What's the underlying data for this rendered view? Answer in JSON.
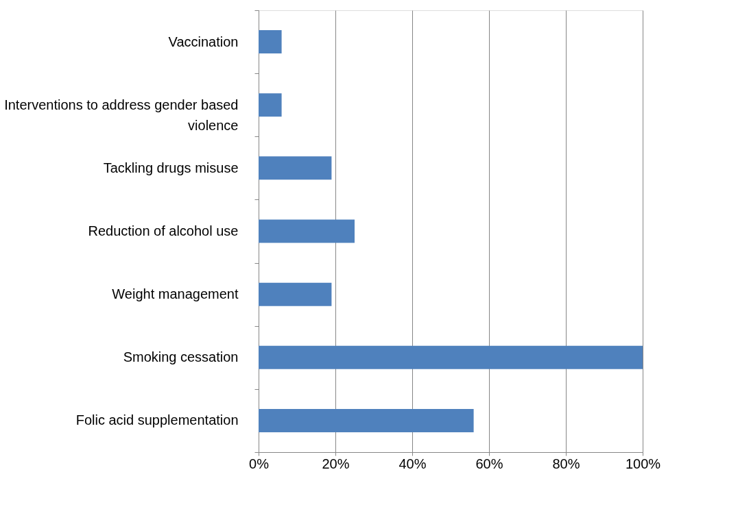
{
  "chart_data": {
    "type": "bar",
    "orientation": "horizontal",
    "categories": [
      "Vaccination",
      "Interventions to address gender based violence",
      "Tackling drugs misuse",
      "Reduction of alcohol use",
      "Weight management",
      "Smoking cessation",
      "Folic acid supplementation"
    ],
    "values": [
      6,
      6,
      19,
      25,
      19,
      100,
      56
    ],
    "color": "#4f81bd",
    "xlim": [
      0,
      100
    ],
    "xticks": [
      {
        "value": 0,
        "label": "0%"
      },
      {
        "value": 20,
        "label": "20%"
      },
      {
        "value": 40,
        "label": "40%"
      },
      {
        "value": 60,
        "label": "60%"
      },
      {
        "value": 80,
        "label": "80%"
      },
      {
        "value": 100,
        "label": "100%"
      }
    ],
    "grid": "x"
  }
}
